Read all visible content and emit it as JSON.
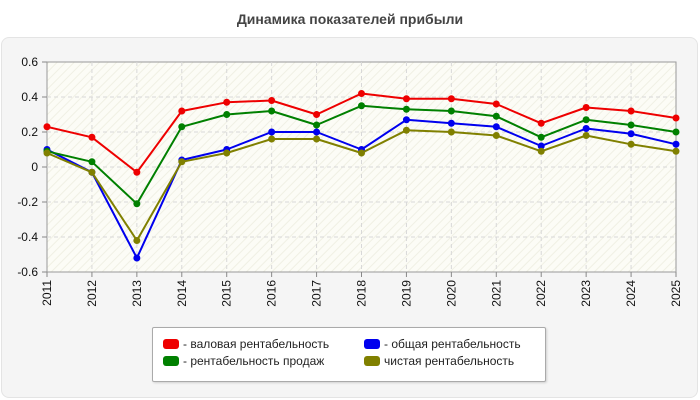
{
  "chart_data": {
    "type": "line",
    "title": "Динамика показателей прибыли",
    "xlabel": "",
    "ylabel": "",
    "x": [
      "2011",
      "2012",
      "2013",
      "2014",
      "2015",
      "2016",
      "2017",
      "2018",
      "2019",
      "2020",
      "2021",
      "2022",
      "2023",
      "2024",
      "2025"
    ],
    "ylim": [
      -0.6,
      0.6
    ],
    "yticks": [
      "0.6",
      "0.4",
      "0.2",
      "0",
      "-0.2",
      "-0.4",
      "-0.6"
    ],
    "grid": true,
    "legend_position": "bottom",
    "series": [
      {
        "name": "- валовая рентабельность",
        "color": "#ee0000",
        "values": [
          0.23,
          0.17,
          -0.03,
          0.32,
          0.37,
          0.38,
          0.3,
          0.42,
          0.39,
          0.39,
          0.36,
          0.25,
          0.34,
          0.32,
          0.28
        ]
      },
      {
        "name": "- общая рентабельность",
        "color": "#0000ee",
        "values": [
          0.1,
          -0.03,
          -0.52,
          0.04,
          0.1,
          0.2,
          0.2,
          0.1,
          0.27,
          0.25,
          0.23,
          0.12,
          0.22,
          0.19,
          0.13
        ]
      },
      {
        "name": "- рентабельность продаж",
        "color": "#008000",
        "values": [
          0.09,
          0.03,
          -0.21,
          0.23,
          0.3,
          0.32,
          0.24,
          0.35,
          0.33,
          0.32,
          0.29,
          0.17,
          0.27,
          0.24,
          0.2
        ]
      },
      {
        "name": "чистая рентабельность",
        "color": "#808000",
        "values": [
          0.08,
          -0.03,
          -0.42,
          0.03,
          0.08,
          0.16,
          0.16,
          0.08,
          0.21,
          0.2,
          0.18,
          0.09,
          0.18,
          0.13,
          0.09
        ]
      }
    ]
  }
}
